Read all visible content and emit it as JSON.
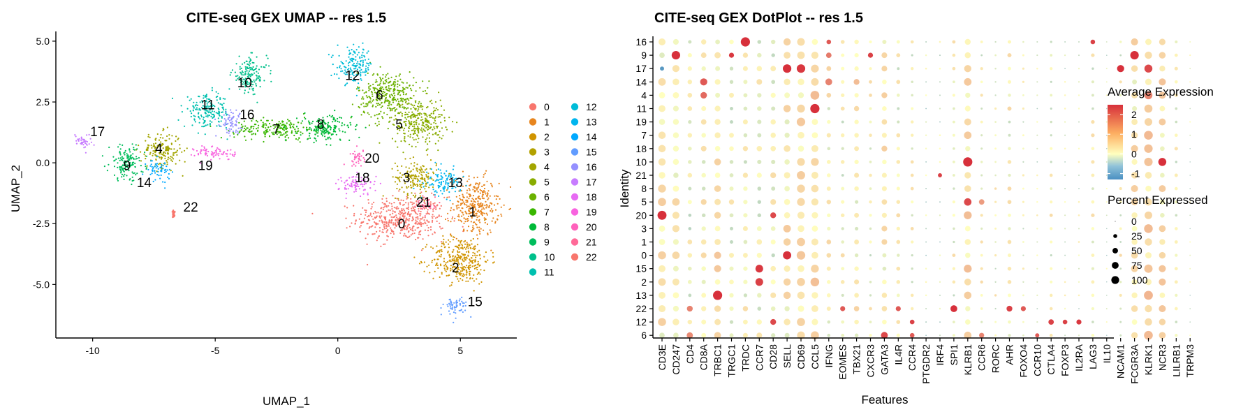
{
  "chart_data": [
    {
      "type": "scatter",
      "title": "CITE-seq GEX UMAP -- res 1.5",
      "xlabel": "UMAP_1",
      "ylabel": "UMAP_2",
      "xlim": [
        -11.5,
        7.3
      ],
      "ylim": [
        -7.2,
        5.4
      ],
      "xticks": [
        -10,
        -5,
        0,
        5
      ],
      "yticks": [
        5.0,
        2.5,
        0.0,
        -2.5,
        -5.0
      ],
      "xtick_labels": [
        "-10",
        "-5",
        "0",
        "5"
      ],
      "ytick_labels": [
        "5.0",
        "2.5",
        "0.0",
        "-2.5",
        "-5.0"
      ],
      "legend_position": "right",
      "clusters": [
        {
          "name": "0",
          "color": "#F8766D",
          "center": [
            2.6,
            -2.3
          ],
          "spread": [
            1.5,
            0.75
          ],
          "label_pos": [
            2.6,
            -2.5
          ]
        },
        {
          "name": "1",
          "color": "#E7851E",
          "center": [
            5.6,
            -1.8
          ],
          "spread": [
            0.8,
            1.0
          ],
          "label_pos": [
            5.5,
            -2.0
          ]
        },
        {
          "name": "2",
          "color": "#D09400",
          "center": [
            5.0,
            -4.0
          ],
          "spread": [
            1.0,
            0.8
          ],
          "label_pos": [
            4.8,
            -4.3
          ]
        },
        {
          "name": "3",
          "color": "#B2A100",
          "center": [
            3.2,
            -0.6
          ],
          "spread": [
            0.7,
            0.6
          ],
          "label_pos": [
            2.8,
            -0.6
          ]
        },
        {
          "name": "4",
          "color": "#A3A500",
          "center": [
            -7.2,
            0.5
          ],
          "spread": [
            0.7,
            0.6
          ],
          "label_pos": [
            -7.3,
            0.6
          ]
        },
        {
          "name": "5",
          "color": "#89AC00",
          "center": [
            3.3,
            1.7
          ],
          "spread": [
            0.9,
            0.8
          ],
          "label_pos": [
            2.5,
            1.6
          ]
        },
        {
          "name": "6",
          "color": "#6BB100",
          "center": [
            2.0,
            2.8
          ],
          "spread": [
            1.0,
            0.8
          ],
          "label_pos": [
            1.7,
            2.8
          ]
        },
        {
          "name": "7",
          "color": "#39B600",
          "center": [
            -2.5,
            1.4
          ],
          "spread": [
            1.4,
            0.35
          ],
          "label_pos": [
            -2.5,
            1.4
          ]
        },
        {
          "name": "8",
          "color": "#00BA38",
          "center": [
            -0.5,
            1.4
          ],
          "spread": [
            0.9,
            0.45
          ],
          "label_pos": [
            -0.7,
            1.6
          ]
        },
        {
          "name": "9",
          "color": "#00BD5C",
          "center": [
            -8.6,
            0.0
          ],
          "spread": [
            0.6,
            0.6
          ],
          "label_pos": [
            -8.6,
            -0.1
          ]
        },
        {
          "name": "10",
          "color": "#00C08B",
          "center": [
            -3.6,
            3.6
          ],
          "spread": [
            0.6,
            0.6
          ],
          "label_pos": [
            -3.8,
            3.3
          ]
        },
        {
          "name": "11",
          "color": "#00C0AF",
          "center": [
            -5.3,
            2.1
          ],
          "spread": [
            0.8,
            0.55
          ],
          "label_pos": [
            -5.3,
            2.4
          ]
        },
        {
          "name": "12",
          "color": "#00BCD8",
          "center": [
            0.7,
            4.0
          ],
          "spread": [
            0.6,
            0.6
          ],
          "label_pos": [
            0.6,
            3.6
          ]
        },
        {
          "name": "13",
          "color": "#00B5EE",
          "center": [
            4.3,
            -0.8
          ],
          "spread": [
            0.6,
            0.45
          ],
          "label_pos": [
            4.8,
            -0.8
          ]
        },
        {
          "name": "14",
          "color": "#00A9FF",
          "center": [
            -7.3,
            -0.3
          ],
          "spread": [
            0.4,
            0.35
          ],
          "label_pos": [
            -7.9,
            -0.8
          ]
        },
        {
          "name": "15",
          "color": "#619CFF",
          "center": [
            4.8,
            -5.9
          ],
          "spread": [
            0.4,
            0.35
          ],
          "label_pos": [
            5.6,
            -5.7
          ]
        },
        {
          "name": "16",
          "color": "#9590FF",
          "center": [
            -4.4,
            1.7
          ],
          "spread": [
            0.4,
            0.4
          ],
          "label_pos": [
            -3.7,
            2.0
          ]
        },
        {
          "name": "17",
          "color": "#C77CFF",
          "center": [
            -10.4,
            0.9
          ],
          "spread": [
            0.3,
            0.25
          ],
          "label_pos": [
            -9.8,
            1.3
          ]
        },
        {
          "name": "18",
          "color": "#E76BF3",
          "center": [
            0.8,
            -0.9
          ],
          "spread": [
            0.6,
            0.35
          ],
          "label_pos": [
            1.0,
            -0.6
          ]
        },
        {
          "name": "19",
          "color": "#F863DF",
          "center": [
            -5.0,
            0.4
          ],
          "spread": [
            0.7,
            0.25
          ],
          "label_pos": [
            -5.4,
            -0.1
          ]
        },
        {
          "name": "20",
          "color": "#FF62BC",
          "center": [
            0.8,
            0.2
          ],
          "spread": [
            0.25,
            0.3
          ],
          "label_pos": [
            1.4,
            0.2
          ]
        },
        {
          "name": "21",
          "color": "#FF6A98",
          "center": [
            3.6,
            -1.7
          ],
          "spread": [
            0.3,
            0.3
          ],
          "label_pos": [
            3.5,
            -1.6
          ]
        },
        {
          "name": "22",
          "color": "#F8766D",
          "center": [
            -6.7,
            -2.1
          ],
          "spread": [
            0.05,
            0.12
          ],
          "label_pos": [
            -6.0,
            -1.8
          ]
        }
      ]
    },
    {
      "type": "dotplot",
      "title": "CITE-seq GEX DotPlot -- res 1.5",
      "xlabel": "Features",
      "ylabel": "Identity",
      "features": [
        "CD3E",
        "CD247",
        "CD4",
        "CD8A",
        "TRBC1",
        "TRGC1",
        "TRDC",
        "CCR7",
        "CD28",
        "SELL",
        "CD69",
        "CCL5",
        "IFNG",
        "EOMES",
        "TBX21",
        "CXCR3",
        "GATA3",
        "IL4R",
        "CCR4",
        "PTGDR2",
        "IRF4",
        "SPI1",
        "KLRB1",
        "CCR6",
        "RORC",
        "AHR",
        "FOXO4",
        "CCR10",
        "CTLA4",
        "FOXP3",
        "IL2RA",
        "LAG3",
        "IL10",
        "NCAM1",
        "FCGR3A",
        "KLRK1",
        "NCR3",
        "LILRB1",
        "TRPM3"
      ],
      "identities": [
        "16",
        "9",
        "17",
        "14",
        "4",
        "11",
        "19",
        "7",
        "18",
        "10",
        "21",
        "8",
        "5",
        "20",
        "3",
        "1",
        "0",
        "15",
        "2",
        "13",
        "22",
        "12",
        "6"
      ],
      "color_scale": {
        "title": "Average Expression",
        "low": "#4A8FC2",
        "mid": "#FFFFBF",
        "high": "#D7303B",
        "min": -1.3,
        "max": 2.5,
        "ticks": [
          2,
          1,
          0,
          -1
        ],
        "tick_labels": [
          "2",
          "1",
          "0",
          "-1"
        ]
      },
      "size_scale": {
        "title": "Percent Expressed",
        "values": [
          0,
          25,
          50,
          75,
          100
        ],
        "labels": [
          "0",
          "25",
          "50",
          "75",
          "100"
        ]
      },
      "base_expression": [
        0.2,
        0.2,
        -0.1,
        0.1,
        0.25,
        0.0,
        0.0,
        0.0,
        0.0,
        0.2,
        0.35,
        0.4,
        0.1,
        0.0,
        0.1,
        0.0,
        0.15,
        0.0,
        0.0,
        -0.3,
        -0.3,
        0.0,
        0.35,
        0.0,
        0.0,
        0.05,
        0.0,
        -0.2,
        0.0,
        -0.2,
        -0.2,
        0.0,
        -0.3,
        0.0,
        0.2,
        0.45,
        0.3,
        0.0,
        -0.3
      ],
      "base_percent": [
        60,
        55,
        20,
        30,
        45,
        25,
        25,
        30,
        30,
        50,
        70,
        70,
        20,
        15,
        25,
        10,
        30,
        15,
        10,
        3,
        3,
        10,
        55,
        8,
        5,
        15,
        5,
        3,
        10,
        3,
        3,
        12,
        2,
        8,
        45,
        70,
        45,
        12,
        2
      ],
      "highlights": [
        {
          "identity": "16",
          "feature": "TRDC",
          "expression": 2.5,
          "percent": 100
        },
        {
          "identity": "16",
          "feature": "LAG3",
          "expression": 2.3,
          "percent": 25
        },
        {
          "identity": "16",
          "feature": "IFNG",
          "expression": 2.0,
          "percent": 25
        },
        {
          "identity": "9",
          "feature": "CD247",
          "expression": 2.5,
          "percent": 85
        },
        {
          "identity": "9",
          "feature": "TRGC1",
          "expression": 2.4,
          "percent": 30
        },
        {
          "identity": "9",
          "feature": "FCGR3A",
          "expression": 2.5,
          "percent": 85
        },
        {
          "identity": "9",
          "feature": "CXCR3",
          "expression": 2.3,
          "percent": 30
        },
        {
          "identity": "9",
          "feature": "IFNG",
          "expression": 1.6,
          "percent": 35
        },
        {
          "identity": "17",
          "feature": "SELL",
          "expression": 2.5,
          "percent": 85
        },
        {
          "identity": "17",
          "feature": "CD69",
          "expression": 2.4,
          "percent": 85
        },
        {
          "identity": "17",
          "feature": "NCAM1",
          "expression": 2.5,
          "percent": 60
        },
        {
          "identity": "17",
          "feature": "KLRK1",
          "expression": 2.2,
          "percent": 75
        },
        {
          "identity": "17",
          "feature": "CD3E",
          "expression": -1.2,
          "percent": 20
        },
        {
          "identity": "14",
          "feature": "CD8A",
          "expression": 2.0,
          "percent": 60
        },
        {
          "identity": "14",
          "feature": "IFNG",
          "expression": 1.5,
          "percent": 55
        },
        {
          "identity": "14",
          "feature": "TBX21",
          "expression": 0.8,
          "percent": 40
        },
        {
          "identity": "4",
          "feature": "CD8A",
          "expression": 1.8,
          "percent": 50
        },
        {
          "identity": "4",
          "feature": "KLRK1",
          "expression": 1.5,
          "percent": 75
        },
        {
          "identity": "11",
          "feature": "CCL5",
          "expression": 2.5,
          "percent": 100
        },
        {
          "identity": "10",
          "feature": "KLRB1",
          "expression": 2.5,
          "percent": 100
        },
        {
          "identity": "10",
          "feature": "NCR3",
          "expression": 2.5,
          "percent": 75
        },
        {
          "identity": "5",
          "feature": "KLRB1",
          "expression": 2.2,
          "percent": 65
        },
        {
          "identity": "5",
          "feature": "CCR6",
          "expression": 1.2,
          "percent": 35
        },
        {
          "identity": "20",
          "feature": "CD3E",
          "expression": 2.5,
          "percent": 95
        },
        {
          "identity": "20",
          "feature": "CD28",
          "expression": 2.2,
          "percent": 40
        },
        {
          "identity": "0",
          "feature": "SELL",
          "expression": 2.5,
          "percent": 80
        },
        {
          "identity": "15",
          "feature": "CCR7",
          "expression": 2.4,
          "percent": 70
        },
        {
          "identity": "2",
          "feature": "CCR7",
          "expression": 2.3,
          "percent": 70
        },
        {
          "identity": "13",
          "feature": "TRBC1",
          "expression": 2.5,
          "percent": 100
        },
        {
          "identity": "22",
          "feature": "SPI1",
          "expression": 2.5,
          "percent": 55
        },
        {
          "identity": "22",
          "feature": "AHR",
          "expression": 2.3,
          "percent": 40
        },
        {
          "identity": "22",
          "feature": "FOXO4",
          "expression": 2.0,
          "percent": 30
        },
        {
          "identity": "22",
          "feature": "EOMES",
          "expression": 2.0,
          "percent": 30
        },
        {
          "identity": "22",
          "feature": "IL4R",
          "expression": 2.0,
          "percent": 30
        },
        {
          "identity": "22",
          "feature": "CD4",
          "expression": 1.5,
          "percent": 40
        },
        {
          "identity": "12",
          "feature": "CD28",
          "expression": 2.2,
          "percent": 40
        },
        {
          "identity": "12",
          "feature": "CCR4",
          "expression": 2.3,
          "percent": 25
        },
        {
          "identity": "12",
          "feature": "CTLA4",
          "expression": 2.3,
          "percent": 35
        },
        {
          "identity": "12",
          "feature": "FOXP3",
          "expression": 2.3,
          "percent": 25
        },
        {
          "identity": "12",
          "feature": "IL2RA",
          "expression": 2.4,
          "percent": 30
        },
        {
          "identity": "6",
          "feature": "GATA3",
          "expression": 2.2,
          "percent": 55
        },
        {
          "identity": "6",
          "feature": "CCR4",
          "expression": 2.0,
          "percent": 25
        },
        {
          "identity": "6",
          "feature": "CCR10",
          "expression": 2.0,
          "percent": 20
        },
        {
          "identity": "6",
          "feature": "CCR6",
          "expression": 1.5,
          "percent": 30
        },
        {
          "identity": "6",
          "feature": "CD4",
          "expression": 1.4,
          "percent": 45
        },
        {
          "identity": "21",
          "feature": "IRF4",
          "expression": 2.3,
          "percent": 20
        }
      ]
    }
  ]
}
